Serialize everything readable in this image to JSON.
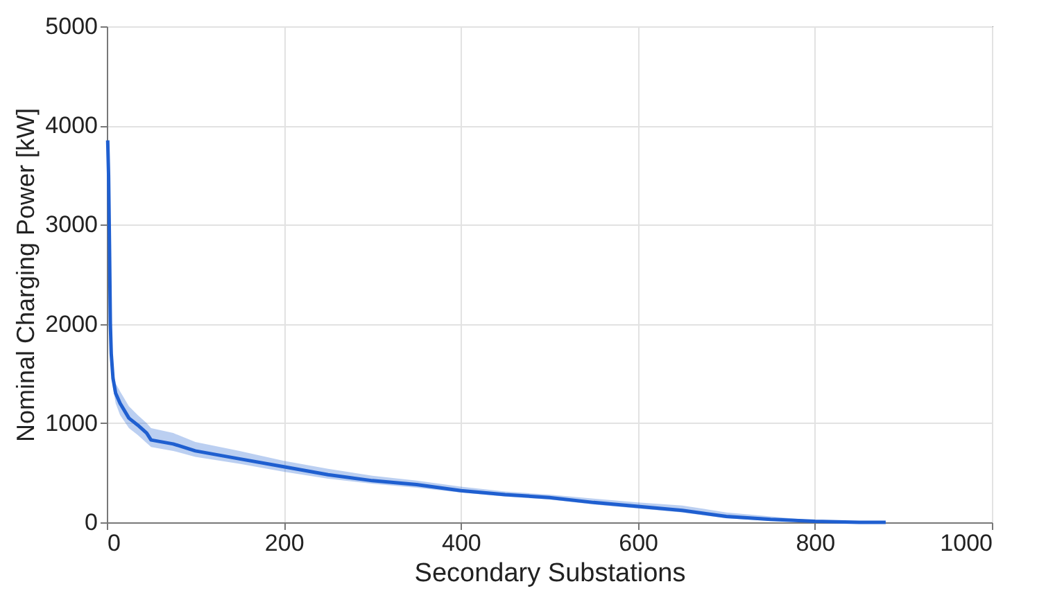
{
  "chart_data": {
    "type": "line",
    "xlabel": "Secondary Substations",
    "ylabel": "Nominal Charging Power [kW]",
    "x": [
      1,
      2,
      3,
      4,
      5,
      7,
      10,
      15,
      25,
      35,
      45,
      50,
      75,
      100,
      150,
      200,
      250,
      300,
      350,
      400,
      450,
      500,
      550,
      600,
      650,
      700,
      750,
      800,
      850,
      880
    ],
    "series": [
      {
        "color": "#1f5fd0",
        "values": [
          3850,
          3500,
          2800,
          2000,
          1700,
          1450,
          1300,
          1200,
          1050,
          980,
          900,
          830,
          790,
          720,
          640,
          560,
          480,
          420,
          380,
          320,
          280,
          250,
          200,
          160,
          120,
          60,
          30,
          10,
          0,
          0
        ],
        "lower": [
          3800,
          3400,
          2700,
          1900,
          1600,
          1350,
          1200,
          1080,
          950,
          880,
          800,
          760,
          720,
          660,
          590,
          510,
          440,
          390,
          350,
          300,
          260,
          230,
          180,
          140,
          100,
          40,
          15,
          0,
          0,
          0
        ],
        "upper": [
          3900,
          3600,
          2900,
          2100,
          1800,
          1550,
          1400,
          1320,
          1170,
          1080,
          1000,
          950,
          900,
          810,
          720,
          620,
          540,
          470,
          420,
          360,
          310,
          280,
          240,
          200,
          170,
          100,
          60,
          20,
          0,
          0
        ]
      }
    ],
    "xlim": [
      0,
      1000
    ],
    "ylim": [
      0,
      5000
    ],
    "xticks": [
      0,
      200,
      400,
      600,
      800,
      1000
    ],
    "yticks": [
      0,
      1000,
      2000,
      3000,
      4000,
      5000
    ],
    "grid": true,
    "marker": "none",
    "line_style": "solid"
  }
}
